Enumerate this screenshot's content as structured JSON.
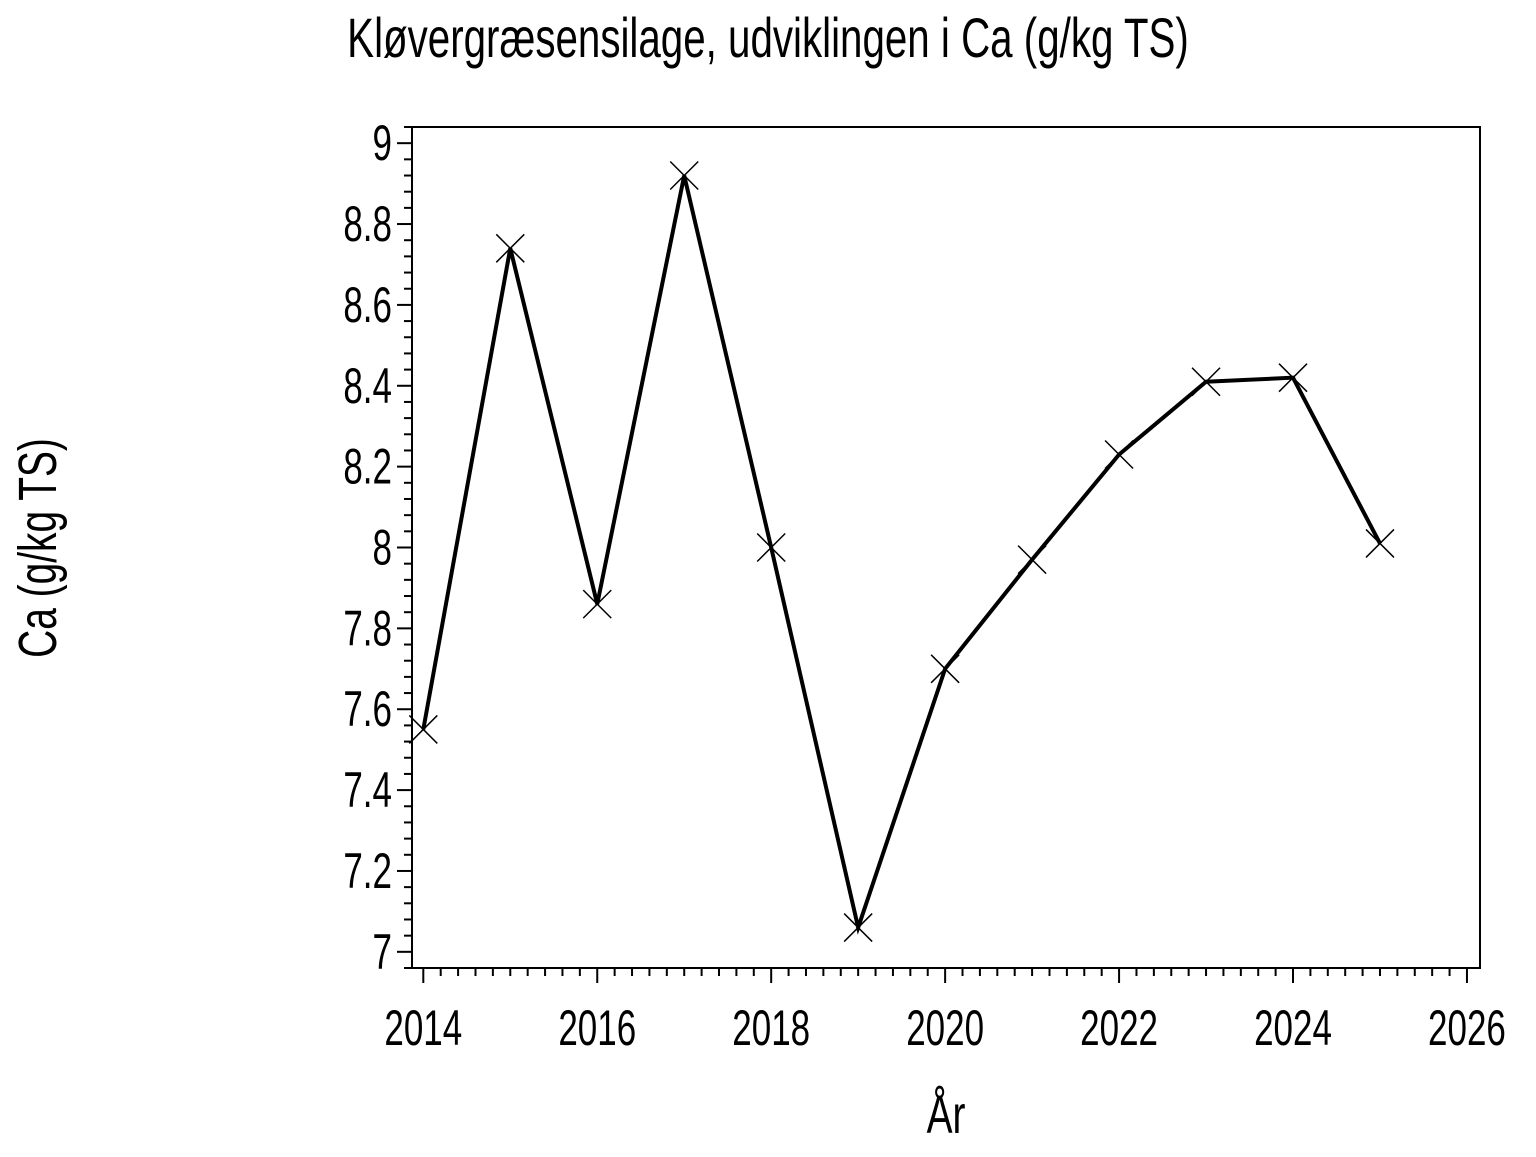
{
  "title": "Kløvergræsensilage, udviklingen i Ca (g/kg TS)",
  "chart_data": {
    "type": "line",
    "title": "Kløvergræsensilage, udviklingen i Ca (g/kg TS)",
    "xlabel": "År",
    "ylabel": "Ca (g/kg TS)",
    "x": [
      2014,
      2015,
      2016,
      2017,
      2018,
      2019,
      2020,
      2021,
      2022,
      2023,
      2024,
      2025
    ],
    "values": [
      7.55,
      8.74,
      7.86,
      8.92,
      8.0,
      7.06,
      7.7,
      7.97,
      8.23,
      8.41,
      8.42,
      8.01
    ],
    "xlim": [
      2013.87,
      2026.15
    ],
    "ylim": [
      6.96,
      9.04
    ],
    "x_major_ticks": [
      2014,
      2016,
      2018,
      2020,
      2022,
      2024,
      2026
    ],
    "x_major_step": 2,
    "x_minor_step": 0.2,
    "y_major_ticks": [
      7,
      7.2,
      7.4,
      7.6,
      7.8,
      8,
      8.2,
      8.4,
      8.6,
      8.8,
      9
    ],
    "y_major_step": 0.2,
    "y_minor_step": 0.04,
    "marker": "x-cross",
    "line_color": "#000000",
    "marker_color": "#000000",
    "frame_color": "#000000",
    "background": "#ffffff",
    "grid": false,
    "legend": null
  }
}
